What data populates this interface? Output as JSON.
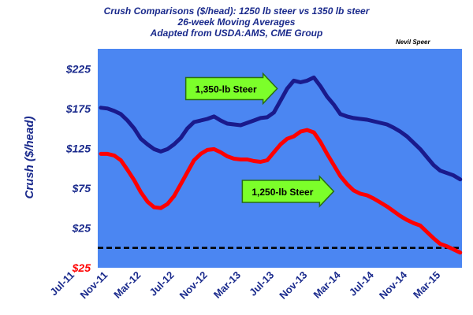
{
  "chart_data": {
    "type": "line",
    "title": "Crush Comparisons ($/head): 1250 lb steer vs 1350 lb steer",
    "subtitle": "26-week Moving Averages",
    "source": "Adapted from USDA:AMS, CME Group",
    "author": "Nevil Speer",
    "xlabel": "",
    "ylabel": "Crush ($/head)",
    "ylim": [
      -25,
      250
    ],
    "yticks": [
      {
        "value": 225,
        "label": "$225"
      },
      {
        "value": 175,
        "label": "$175"
      },
      {
        "value": 125,
        "label": "$125"
      },
      {
        "value": 75,
        "label": "$75"
      },
      {
        "value": 25,
        "label": "$25"
      },
      {
        "value": -25,
        "label": "$25"
      }
    ],
    "x_tick_labels": [
      "Jul-11",
      "Nov-11",
      "Mar-12",
      "Jul-12",
      "Nov-12",
      "Mar-13",
      "Jul-13",
      "Nov-13",
      "Mar-14",
      "Jul-14",
      "Nov-14",
      "Mar-15"
    ],
    "reference_line": 0,
    "grid": false,
    "colors": {
      "plot_background": "#4b86f2",
      "series_1350": "#1a1a8c",
      "series_1250": "#ff0000",
      "positive_tick": "#1a2a8c",
      "negative_tick": "#ff0000",
      "callout_fill": "#7cff2a",
      "callout_stroke": "#2a6e12"
    },
    "series": [
      {
        "id": "s1350",
        "name": "1,350-lb Steer",
        "x": [
          0.9,
          1.1,
          1.3,
          1.5,
          1.7,
          1.9,
          2.1,
          2.3,
          2.5,
          2.7,
          2.9,
          3.1,
          3.3,
          3.5,
          3.7,
          3.9,
          4.1,
          4.3,
          4.5,
          4.7,
          4.9,
          5.1,
          5.3,
          5.5,
          5.7,
          5.9,
          6.1,
          6.3,
          6.5,
          6.7,
          6.9,
          7.1,
          7.3,
          7.5,
          7.7,
          7.9,
          8.1,
          8.3,
          8.5,
          8.7,
          8.9,
          9.1,
          9.3,
          9.5,
          9.7,
          9.9,
          10.1,
          10.3,
          10.5,
          10.7,
          10.9,
          11.1,
          11.3,
          11.5,
          11.7
        ],
        "values": [
          176,
          175,
          172,
          168,
          160,
          150,
          137,
          130,
          124,
          121,
          124,
          130,
          138,
          150,
          158,
          160,
          162,
          165,
          160,
          156,
          155,
          154,
          157,
          160,
          163,
          164,
          170,
          185,
          200,
          210,
          208,
          210,
          214,
          203,
          190,
          180,
          168,
          165,
          163,
          162,
          161,
          159,
          157,
          155,
          151,
          146,
          140,
          132,
          124,
          114,
          104,
          97,
          94,
          91,
          86
        ]
      },
      {
        "id": "s1250",
        "name": "1,250-lb Steer",
        "x": [
          0.9,
          1.1,
          1.3,
          1.5,
          1.7,
          1.9,
          2.1,
          2.3,
          2.5,
          2.7,
          2.9,
          3.1,
          3.3,
          3.5,
          3.7,
          3.9,
          4.1,
          4.3,
          4.5,
          4.7,
          4.9,
          5.1,
          5.3,
          5.5,
          5.7,
          5.9,
          6.1,
          6.3,
          6.5,
          6.7,
          6.9,
          7.1,
          7.3,
          7.5,
          7.7,
          7.9,
          8.1,
          8.3,
          8.5,
          8.7,
          8.9,
          9.1,
          9.3,
          9.5,
          9.7,
          9.9,
          10.1,
          10.3,
          10.5,
          10.7,
          10.9,
          11.1,
          11.3,
          11.5,
          11.7
        ],
        "values": [
          118,
          118,
          116,
          110,
          98,
          85,
          70,
          58,
          51,
          50,
          55,
          65,
          80,
          95,
          110,
          118,
          123,
          124,
          120,
          115,
          112,
          111,
          111,
          109,
          108,
          110,
          120,
          130,
          137,
          140,
          146,
          148,
          145,
          133,
          118,
          104,
          90,
          80,
          72,
          68,
          66,
          62,
          57,
          52,
          46,
          40,
          35,
          31,
          28,
          20,
          12,
          5,
          2,
          -2,
          -6
        ]
      }
    ],
    "annotations": [
      {
        "text": "1,350-lb Steer",
        "series": "s1350",
        "x_at": 6.2,
        "y_at": 200
      },
      {
        "text": "1,250-lb Steer",
        "series": "s1250",
        "x_at": 7.9,
        "y_at": 71
      }
    ]
  }
}
